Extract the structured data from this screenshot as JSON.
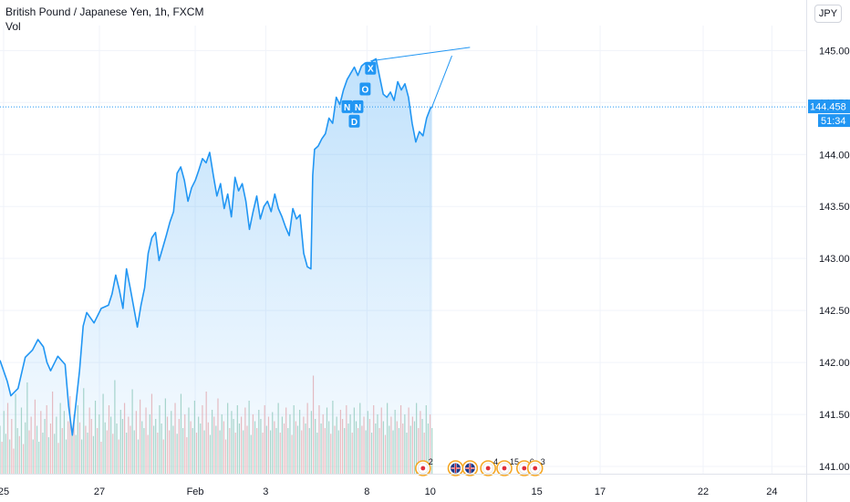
{
  "header": {
    "title": "British Pound / Japanese Yen, 1h, FXCM",
    "indicator": "Vol",
    "currency_button": "JPY"
  },
  "last_price": {
    "value": "144.458",
    "countdown": "51:34",
    "color": "#2196f3"
  },
  "colors": {
    "line": "#2196f3",
    "vol_up": "#a6d4c2",
    "vol_down": "#f2b6b6",
    "grid": "#f0f3fa",
    "axis_text": "#131722"
  },
  "chart_data": {
    "type": "area",
    "title": "",
    "ylim": [
      140.93,
      145.24
    ],
    "y_ticks": [
      "141.000",
      "141.500",
      "142.000",
      "142.500",
      "143.000",
      "143.500",
      "144.000",
      "144.500",
      "145.000"
    ],
    "x_ticks": [
      {
        "label": "25",
        "i": 2
      },
      {
        "label": "27",
        "i": 55
      },
      {
        "label": "Feb",
        "i": 108
      },
      {
        "label": "3",
        "i": 147
      },
      {
        "label": "8",
        "i": 203
      },
      {
        "label": "10",
        "i": 238
      },
      {
        "label": "15",
        "i": 297
      },
      {
        "label": "17",
        "i": 332
      },
      {
        "label": "22",
        "i": 389
      },
      {
        "label": "24",
        "i": 427
      }
    ],
    "price_series": [
      [
        0,
        142.02
      ],
      [
        4,
        141.82
      ],
      [
        6,
        141.68
      ],
      [
        10,
        141.75
      ],
      [
        14,
        142.05
      ],
      [
        18,
        142.12
      ],
      [
        21,
        142.22
      ],
      [
        24,
        142.15
      ],
      [
        26,
        142.0
      ],
      [
        28,
        141.92
      ],
      [
        32,
        142.06
      ],
      [
        36,
        141.98
      ],
      [
        38,
        141.58
      ],
      [
        40,
        141.3
      ],
      [
        42,
        141.6
      ],
      [
        44,
        141.92
      ],
      [
        46,
        142.35
      ],
      [
        48,
        142.48
      ],
      [
        52,
        142.38
      ],
      [
        56,
        142.52
      ],
      [
        60,
        142.55
      ],
      [
        62,
        142.66
      ],
      [
        64,
        142.84
      ],
      [
        66,
        142.7
      ],
      [
        68,
        142.52
      ],
      [
        70,
        142.9
      ],
      [
        72,
        142.72
      ],
      [
        76,
        142.34
      ],
      [
        78,
        142.55
      ],
      [
        80,
        142.72
      ],
      [
        82,
        143.05
      ],
      [
        84,
        143.2
      ],
      [
        86,
        143.25
      ],
      [
        88,
        142.98
      ],
      [
        92,
        143.22
      ],
      [
        94,
        143.35
      ],
      [
        96,
        143.45
      ],
      [
        98,
        143.82
      ],
      [
        100,
        143.88
      ],
      [
        102,
        143.75
      ],
      [
        104,
        143.55
      ],
      [
        106,
        143.68
      ],
      [
        108,
        143.75
      ],
      [
        110,
        143.85
      ],
      [
        112,
        143.96
      ],
      [
        114,
        143.92
      ],
      [
        116,
        144.02
      ],
      [
        118,
        143.8
      ],
      [
        120,
        143.6
      ],
      [
        122,
        143.72
      ],
      [
        124,
        143.48
      ],
      [
        126,
        143.62
      ],
      [
        128,
        143.4
      ],
      [
        130,
        143.78
      ],
      [
        132,
        143.65
      ],
      [
        134,
        143.72
      ],
      [
        136,
        143.55
      ],
      [
        138,
        143.28
      ],
      [
        140,
        143.45
      ],
      [
        142,
        143.6
      ],
      [
        144,
        143.38
      ],
      [
        146,
        143.5
      ],
      [
        148,
        143.55
      ],
      [
        150,
        143.45
      ],
      [
        152,
        143.62
      ],
      [
        154,
        143.48
      ],
      [
        156,
        143.4
      ],
      [
        158,
        143.3
      ],
      [
        160,
        143.22
      ],
      [
        162,
        143.48
      ],
      [
        164,
        143.38
      ],
      [
        166,
        143.42
      ],
      [
        168,
        143.05
      ],
      [
        170,
        142.92
      ],
      [
        172,
        142.9
      ],
      [
        173,
        143.8
      ],
      [
        174,
        144.05
      ],
      [
        176,
        144.08
      ],
      [
        178,
        144.15
      ],
      [
        180,
        144.2
      ],
      [
        182,
        144.35
      ],
      [
        184,
        144.3
      ],
      [
        186,
        144.55
      ],
      [
        188,
        144.48
      ],
      [
        190,
        144.62
      ],
      [
        192,
        144.72
      ],
      [
        194,
        144.78
      ],
      [
        196,
        144.84
      ],
      [
        198,
        144.76
      ],
      [
        200,
        144.85
      ],
      [
        202,
        144.88
      ],
      [
        204,
        144.82
      ],
      [
        206,
        144.9
      ],
      [
        208,
        144.92
      ],
      [
        210,
        144.75
      ],
      [
        212,
        144.58
      ],
      [
        214,
        144.55
      ],
      [
        216,
        144.6
      ],
      [
        218,
        144.52
      ],
      [
        220,
        144.7
      ],
      [
        222,
        144.62
      ],
      [
        224,
        144.68
      ],
      [
        226,
        144.55
      ],
      [
        228,
        144.3
      ],
      [
        230,
        144.12
      ],
      [
        232,
        144.22
      ],
      [
        234,
        144.18
      ],
      [
        236,
        144.35
      ],
      [
        238,
        144.44
      ],
      [
        239,
        144.458
      ]
    ],
    "volume_heights": [
      0.42,
      0.28,
      0.55,
      0.35,
      0.62,
      0.3,
      0.48,
      0.22,
      0.7,
      0.4,
      0.33,
      0.58,
      0.26,
      0.45,
      0.8,
      0.38,
      0.5,
      0.3,
      0.65,
      0.42,
      0.28,
      0.55,
      0.36,
      0.48,
      0.6,
      0.32,
      0.44,
      0.72,
      0.35,
      0.5,
      0.27,
      0.62,
      0.4,
      0.55,
      0.3,
      0.46,
      0.68,
      0.38,
      0.52,
      0.34,
      0.6,
      0.45,
      0.3,
      0.75,
      0.42,
      0.36,
      0.58,
      0.48,
      0.33,
      0.64,
      0.4,
      0.52,
      0.28,
      0.7,
      0.45,
      0.38,
      0.6,
      0.5,
      0.35,
      0.82,
      0.44,
      0.3,
      0.56,
      0.48,
      0.62,
      0.36,
      0.5,
      0.42,
      0.74,
      0.38,
      0.55,
      0.3,
      0.65,
      0.46,
      0.4,
      0.58,
      0.34,
      0.52,
      0.7,
      0.42,
      0.48,
      0.36,
      0.6,
      0.44,
      0.3,
      0.66,
      0.5,
      0.38,
      0.55,
      0.42,
      0.62,
      0.35,
      0.48,
      0.7,
      0.4,
      0.52,
      0.32,
      0.58,
      0.46,
      0.4,
      0.64,
      0.36,
      0.5,
      0.44,
      0.6,
      0.38,
      0.72,
      0.45,
      0.34,
      0.56,
      0.5,
      0.42,
      0.66,
      0.38,
      0.52,
      0.46,
      0.3,
      0.62,
      0.4,
      0.55,
      0.48,
      0.36,
      0.6,
      0.44,
      0.5,
      0.38,
      0.58,
      0.42,
      0.64,
      0.34,
      0.52,
      0.46,
      0.4,
      0.56,
      0.48,
      0.36,
      0.6,
      0.42,
      0.5,
      0.38,
      0.54,
      0.46,
      0.4,
      0.62,
      0.36,
      0.5,
      0.44,
      0.58,
      0.4,
      0.52,
      0.34,
      0.6,
      0.46,
      0.42,
      0.56,
      0.38,
      0.5,
      0.44,
      0.62,
      0.4,
      0.55,
      0.86,
      0.48,
      0.36,
      0.6,
      0.44,
      0.52,
      0.4,
      0.58,
      0.46,
      0.35,
      0.64,
      0.42,
      0.5,
      0.38,
      0.56,
      0.48,
      0.4,
      0.6,
      0.44,
      0.52,
      0.36,
      0.58,
      0.46,
      0.4,
      0.62,
      0.42,
      0.5,
      0.38,
      0.55,
      0.48,
      0.36,
      0.6,
      0.44,
      0.52,
      0.4,
      0.58,
      0.46,
      0.34,
      0.62,
      0.42,
      0.5,
      0.38,
      0.56,
      0.46,
      0.4,
      0.6,
      0.44,
      0.52,
      0.36,
      0.58,
      0.42,
      0.5,
      0.46,
      0.62,
      0.4,
      0.55,
      0.48,
      0.36,
      0.6,
      0.44,
      0.52,
      0.4
    ],
    "volume_up_pattern": [
      1,
      0,
      1,
      1,
      0,
      1,
      0,
      0,
      1,
      1,
      0,
      1,
      0,
      1,
      1,
      0,
      0,
      1,
      0,
      1
    ],
    "trendline": [
      [
        205,
        144.9
      ],
      [
        260,
        145.03
      ]
    ],
    "projection_line": [
      [
        239,
        144.458
      ],
      [
        250,
        144.95
      ]
    ],
    "trade_markers": [
      {
        "label": "X",
        "i": 205,
        "y": 144.83
      },
      {
        "label": "O",
        "i": 202,
        "y": 144.63
      },
      {
        "label": "N",
        "i": 198,
        "y": 144.46
      },
      {
        "label": "N",
        "i": 192,
        "y": 144.46
      },
      {
        "label": "D",
        "i": 196,
        "y": 144.32
      }
    ],
    "event_markers": [
      {
        "type": "flag-jp",
        "i": 234,
        "count": "2"
      },
      {
        "type": "flag-uk",
        "i": 252,
        "count": ""
      },
      {
        "type": "flag-uk",
        "i": 260,
        "count": ""
      },
      {
        "type": "flag-jp",
        "i": 270,
        "count": "4"
      },
      {
        "type": "flag-jp",
        "i": 279,
        "count": "15"
      },
      {
        "type": "flag-jp",
        "i": 290,
        "count": "6"
      },
      {
        "type": "flag-jp",
        "i": 296,
        "count": "3"
      }
    ]
  }
}
